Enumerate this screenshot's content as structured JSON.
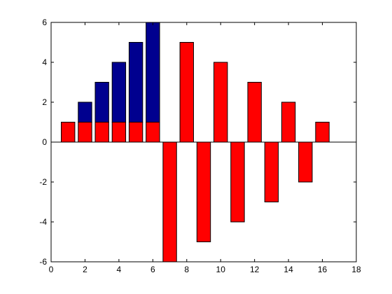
{
  "chart_data": {
    "type": "bar",
    "stacked": true,
    "x": [
      1,
      2,
      3,
      4,
      5,
      6,
      7,
      8,
      9,
      10,
      11,
      12,
      13,
      14,
      15,
      16
    ],
    "series": [
      {
        "color": "#ff0000",
        "values": [
          1,
          1,
          1,
          1,
          1,
          1,
          -6,
          5,
          -5,
          4,
          -4,
          3,
          -3,
          2,
          -2,
          1
        ]
      },
      {
        "color": "#00008f",
        "values": [
          0,
          1,
          2,
          3,
          4,
          5,
          0,
          0,
          0,
          0,
          0,
          0,
          0,
          0,
          0,
          0
        ]
      }
    ],
    "xlim": [
      0,
      18
    ],
    "ylim": [
      -6,
      6
    ],
    "xticks": [
      "0",
      "2",
      "4",
      "6",
      "8",
      "10",
      "12",
      "14",
      "16",
      "18"
    ],
    "yticks": [
      "-6",
      "-4",
      "-2",
      "0",
      "2",
      "4",
      "6"
    ],
    "title": "",
    "xlabel": "",
    "ylabel": "",
    "grid": false,
    "bar_width": 0.8
  }
}
